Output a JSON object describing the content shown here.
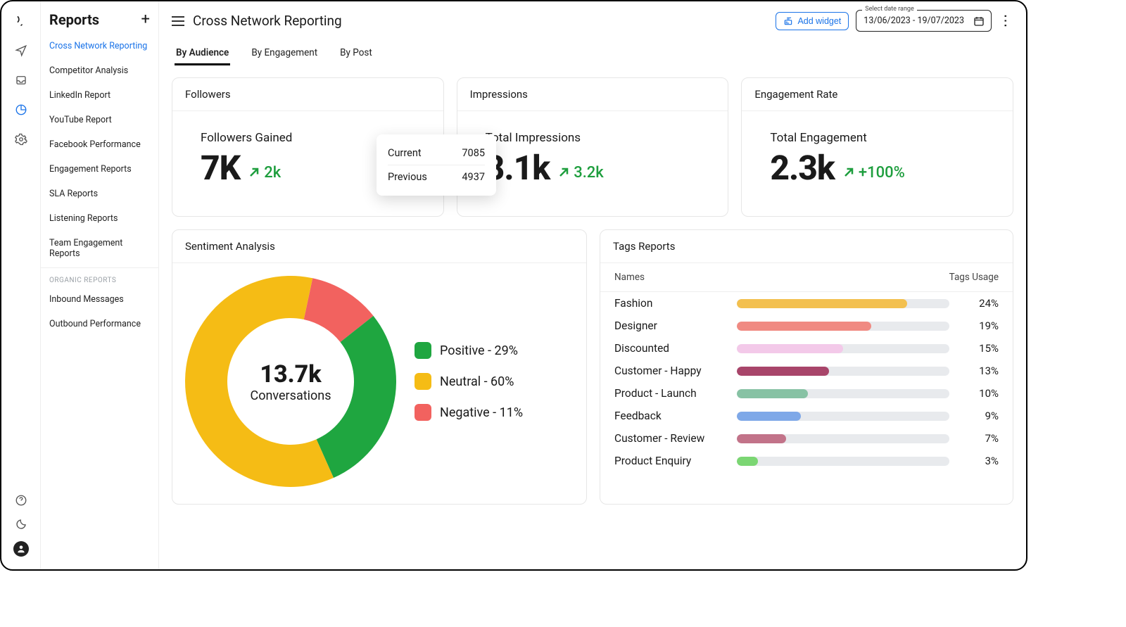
{
  "rail": {
    "icons": [
      "logo",
      "send",
      "inbox",
      "pie",
      "gear"
    ],
    "bottom_icons": [
      "help",
      "moon",
      "avatar"
    ],
    "active_index": 3
  },
  "sidenav": {
    "title": "Reports",
    "items": [
      {
        "label": "Cross Network Reporting",
        "active": true
      },
      {
        "label": "Competitor Analysis"
      },
      {
        "label": "LinkedIn Report"
      },
      {
        "label": "YouTube Report"
      },
      {
        "label": "Facebook Performance"
      },
      {
        "label": "Engagement Reports"
      },
      {
        "label": "SLA Reports"
      },
      {
        "label": "Listening Reports"
      },
      {
        "label": "Team Engagement Reports"
      }
    ],
    "section_label": "ORGANIC REPORTS",
    "organic_items": [
      {
        "label": "Inbound Messages"
      },
      {
        "label": "Outbound Performance"
      }
    ]
  },
  "header": {
    "title": "Cross Network Reporting",
    "add_widget_label": "Add widget",
    "date_field_label": "Select date range",
    "date_range": "13/06/2023 - 19/07/2023"
  },
  "tabs": {
    "items": [
      "By Audience",
      "By Engagement",
      "By Post"
    ],
    "active": 0
  },
  "stats": [
    {
      "card_title": "Followers",
      "label": "Followers Gained",
      "value": "7K",
      "trend_value": "2k",
      "trend_color": "#1e9e3e",
      "tooltip": {
        "rows": [
          {
            "k": "Current",
            "v": "7085"
          },
          {
            "k": "Previous",
            "v": "4937"
          }
        ]
      }
    },
    {
      "card_title": "Impressions",
      "label": "Total Impressions",
      "value": "8.1k",
      "trend_value": "3.2k",
      "trend_color": "#1e9e3e"
    },
    {
      "card_title": "Engagement Rate",
      "label": "Total Engagement",
      "value": "2.3k",
      "trend_value": "+100%",
      "trend_color": "#1e9e3e"
    }
  ],
  "sentiment": {
    "title": "Sentiment Analysis",
    "center_value": "13.7k",
    "center_label": "Conversations",
    "type": "donut",
    "donut_outer_r": 150,
    "donut_inner_r": 90,
    "slices": [
      {
        "name": "Positive",
        "pct": 29,
        "color": "#1fa640",
        "label": "Positive - 29%"
      },
      {
        "name": "Neutral",
        "pct": 60,
        "color": "#f5bc15",
        "label": "Neutral - 60%"
      },
      {
        "name": "Negative",
        "pct": 11,
        "color": "#f2625f",
        "label": "Negative - 11%"
      }
    ],
    "start_angle_deg": 12
  },
  "tags": {
    "title": "Tags Reports",
    "col_names": "Names",
    "col_usage": "Tags Usage",
    "track_color": "#e8eaed",
    "max_bar_pct": 30,
    "rows": [
      {
        "name": "Fashion",
        "pct": 24,
        "color": "#f3c04f"
      },
      {
        "name": "Designer",
        "pct": 19,
        "color": "#f08a82"
      },
      {
        "name": "Discounted",
        "pct": 15,
        "color": "#f3c9e9"
      },
      {
        "name": "Customer - Happy",
        "pct": 13,
        "color": "#a8456a"
      },
      {
        "name": "Product - Launch",
        "pct": 10,
        "color": "#87c2a4"
      },
      {
        "name": "Feedback",
        "pct": 9,
        "color": "#7ea8e8"
      },
      {
        "name": "Customer - Review",
        "pct": 7,
        "color": "#c27389"
      },
      {
        "name": "Product Enquiry",
        "pct": 3,
        "color": "#7bd673"
      }
    ]
  },
  "colors": {
    "link": "#1a73e8",
    "border": "#e6e6e6",
    "text": "#1a1a1a"
  }
}
